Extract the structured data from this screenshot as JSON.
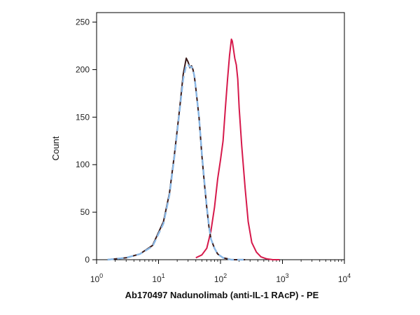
{
  "chart_data": {
    "type": "line",
    "title": "",
    "xlabel": "Ab170497 Nadunolimab (anti-IL-1 RAcP) - PE",
    "ylabel": "Count",
    "x_scale": "log",
    "xlim": [
      1,
      10000
    ],
    "ylim": [
      0,
      260
    ],
    "x_ticks": [
      {
        "base": "10",
        "exp": "0",
        "value": 1
      },
      {
        "base": "10",
        "exp": "1",
        "value": 10
      },
      {
        "base": "10",
        "exp": "2",
        "value": 100
      },
      {
        "base": "10",
        "exp": "3",
        "value": 1000
      },
      {
        "base": "10",
        "exp": "4",
        "value": 10000
      }
    ],
    "y_ticks": [
      "0",
      "50",
      "100",
      "150",
      "200",
      "250"
    ],
    "grid": false,
    "legend": "none",
    "series": [
      {
        "color": "#d6194b",
        "style": "solid",
        "x": [
          40,
          50,
          60,
          70,
          80,
          90,
          100,
          110,
          120,
          130,
          140,
          150,
          155,
          160,
          170,
          180,
          190,
          200,
          220,
          250,
          280,
          320,
          380,
          450,
          550,
          700,
          900
        ],
        "y": [
          2,
          5,
          12,
          30,
          55,
          85,
          105,
          125,
          160,
          190,
          215,
          232,
          230,
          224,
          212,
          205,
          190,
          160,
          120,
          75,
          40,
          18,
          8,
          3,
          1,
          0,
          0
        ]
      },
      {
        "color": "#3a1a1a",
        "style": "solid",
        "x": [
          1.5,
          3,
          5,
          8,
          12,
          15,
          18,
          22,
          25,
          28,
          30,
          32,
          34,
          36,
          38,
          40,
          45,
          50,
          55,
          60,
          65,
          70,
          80,
          90,
          110,
          150,
          250
        ],
        "y": [
          0,
          2,
          6,
          15,
          40,
          70,
          110,
          160,
          195,
          212,
          208,
          202,
          204,
          200,
          192,
          180,
          150,
          110,
          80,
          55,
          35,
          22,
          12,
          6,
          2,
          0,
          0
        ]
      },
      {
        "color": "#8ab8e6",
        "style": "dashed",
        "x": [
          1.5,
          3,
          5,
          8,
          12,
          15,
          18,
          22,
          25,
          28,
          30,
          32,
          34,
          36,
          38,
          40,
          45,
          50,
          55,
          60,
          65,
          70,
          80,
          90,
          110,
          150,
          250
        ],
        "y": [
          0,
          2,
          6,
          14,
          38,
          68,
          108,
          158,
          190,
          205,
          205,
          203,
          203,
          200,
          193,
          180,
          150,
          112,
          82,
          56,
          36,
          22,
          12,
          6,
          2,
          0,
          0
        ]
      }
    ]
  }
}
